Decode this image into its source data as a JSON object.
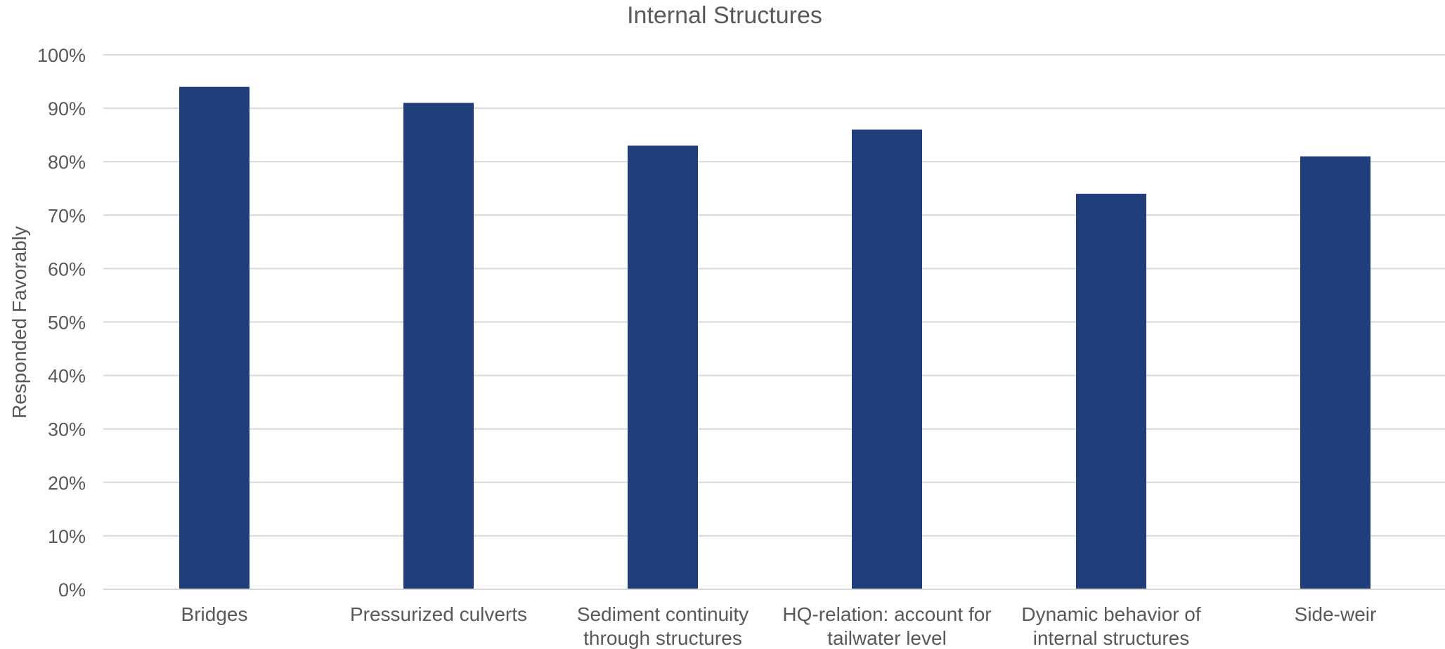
{
  "chart_data": {
    "type": "bar",
    "title": "Internal Structures",
    "xlabel": "",
    "ylabel": "Responded Favorably",
    "ylim": [
      0,
      100
    ],
    "yticks": [
      "0%",
      "10%",
      "20%",
      "30%",
      "40%",
      "50%",
      "60%",
      "70%",
      "80%",
      "90%",
      "100%"
    ],
    "grid": true,
    "legend": "none",
    "categories": [
      [
        "Bridges"
      ],
      [
        "Pressurized culverts"
      ],
      [
        "Sediment continuity",
        "through structures"
      ],
      [
        "HQ-relation: account for",
        "tailwater level"
      ],
      [
        "Dynamic behavior of",
        "internal structures"
      ],
      [
        "Side-weir"
      ]
    ],
    "values": [
      94,
      91,
      83,
      86,
      74,
      81
    ],
    "bar_color": "#203f7a"
  }
}
